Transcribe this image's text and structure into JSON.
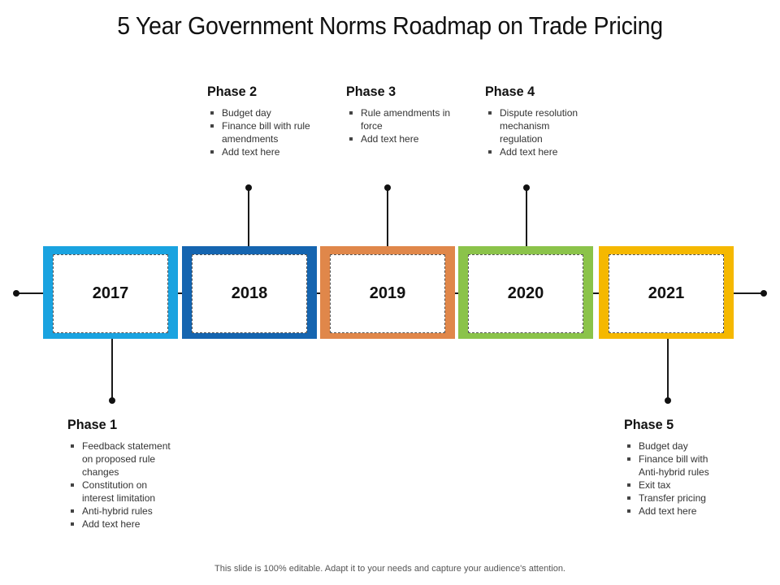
{
  "title": "5 Year Government Norms Roadmap on Trade Pricing",
  "colors": {
    "y2017": "#1aa3e0",
    "y2018": "#1565b0",
    "y2019": "#e0874a",
    "y2020": "#8bc34a",
    "y2021": "#f5b800",
    "line": "#1a1a1a"
  },
  "years": [
    "2017",
    "2018",
    "2019",
    "2020",
    "2021"
  ],
  "phases": [
    {
      "title": "Phase 1",
      "items": [
        "Feedback statement on proposed rule changes",
        "Constitution on interest limitation",
        "Anti-hybrid rules",
        "Add text here"
      ]
    },
    {
      "title": "Phase 2",
      "items": [
        "Budget day",
        "Finance bill with rule amendments",
        "Add text here"
      ]
    },
    {
      "title": "Phase 3",
      "items": [
        "Rule amendments in force",
        "Add text here"
      ]
    },
    {
      "title": "Phase 4",
      "items": [
        "Dispute resolution mechanism regulation",
        "Add text here"
      ]
    },
    {
      "title": "Phase 5",
      "items": [
        "Budget day",
        "Finance bill with Anti-hybrid rules",
        "Exit tax",
        "Transfer pricing",
        "Add text here"
      ]
    }
  ],
  "footer": "This slide is 100% editable. Adapt it to your needs and capture your audience's attention."
}
